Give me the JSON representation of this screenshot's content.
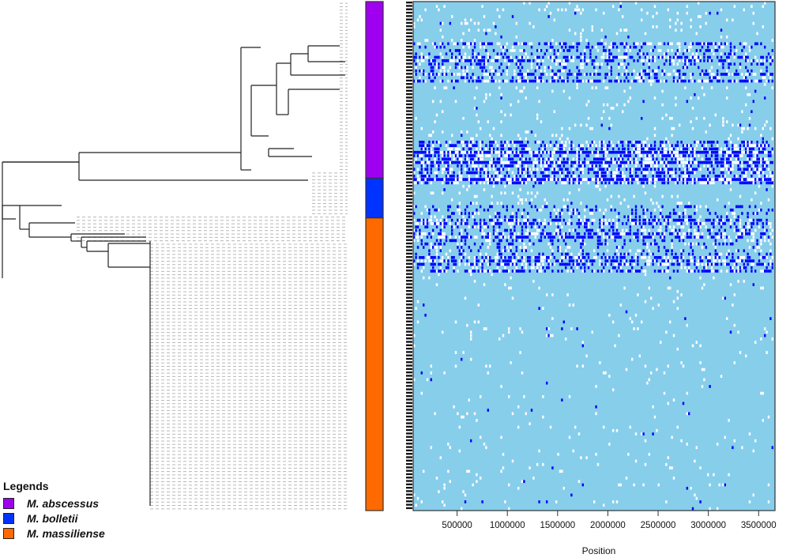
{
  "chart_data": {
    "type": "heatmap",
    "title": "",
    "xlabel": "Position",
    "ylabel": "",
    "x_ticks": [
      500000,
      1000000,
      1500000,
      2000000,
      2500000,
      3000000,
      3500000
    ],
    "x_tick_labels": [
      "500000",
      "1000000",
      "1500000",
      "2000000",
      "2500000",
      "3000000",
      "3500000"
    ],
    "xlim": [
      0,
      3600000
    ],
    "cell_colors": {
      "background": "#87CEEB",
      "absent": "#FFFFFF",
      "present": "#0000FF"
    },
    "panels": [
      "phylogenetic-tree",
      "species-color-bar",
      "snp-position-heatmap"
    ],
    "species_bar": [
      {
        "species": "M. abscessus",
        "color": "#A000F0",
        "fraction": 0.347
      },
      {
        "species": "M. bolletii",
        "color": "#0033FF",
        "fraction": 0.078
      },
      {
        "species": "M. massiliense",
        "color": "#FF6A00",
        "fraction": 0.575
      }
    ],
    "dense_row_bands": [
      {
        "y_fraction_start": 0.08,
        "y_fraction_end": 0.16,
        "density": "high"
      },
      {
        "y_fraction_start": 0.27,
        "y_fraction_end": 0.36,
        "density": "very high"
      },
      {
        "y_fraction_start": 0.4,
        "y_fraction_end": 0.53,
        "density": "high"
      },
      {
        "y_fraction_start": 0.53,
        "y_fraction_end": 1.0,
        "density": "sparse"
      }
    ]
  },
  "legend": {
    "title": "Legends",
    "items": [
      {
        "label": "M. abscessus",
        "color": "#A000F0"
      },
      {
        "label": "M. bolletii",
        "color": "#0033FF"
      },
      {
        "label": "M. massiliense",
        "color": "#FF6A00"
      }
    ]
  },
  "axis": {
    "x_title": "Position",
    "tick_labels": [
      "500000",
      "1000000",
      "1500000",
      "2000000",
      "2500000",
      "3000000",
      "3500000"
    ]
  }
}
